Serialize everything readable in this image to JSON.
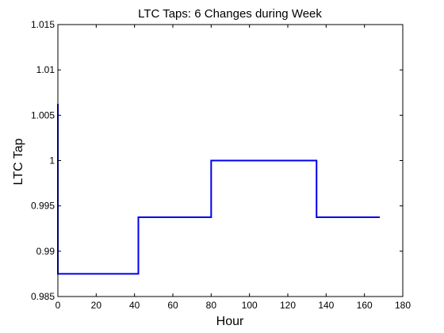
{
  "chart_data": {
    "type": "line",
    "title": "LTC Taps: 6 Changes during Week",
    "xlabel": "Hour",
    "ylabel": "LTC Tap",
    "xlim": [
      0,
      180
    ],
    "ylim": [
      0.985,
      1.015
    ],
    "x_ticks": [
      0,
      20,
      40,
      60,
      80,
      100,
      120,
      140,
      160,
      180
    ],
    "y_ticks": [
      0.985,
      0.99,
      0.995,
      1,
      1.005,
      1.01,
      1.015
    ],
    "x_tick_labels": [
      "0",
      "20",
      "40",
      "60",
      "80",
      "100",
      "120",
      "140",
      "160",
      "180"
    ],
    "y_tick_labels": [
      "0.985",
      "0.99",
      "0.995",
      "1",
      "1.005",
      "1.01",
      "1.015"
    ],
    "grid": false,
    "series": [
      {
        "color": "#0000ee",
        "x": [
          0,
          0,
          0.6,
          0.6,
          42,
          42,
          80,
          80,
          80,
          80,
          135,
          135,
          135,
          135,
          168
        ],
        "y": [
          1.00625,
          0.9875,
          0.9875,
          0.9875,
          0.9875,
          0.99375,
          0.99375,
          0.997,
          0.997,
          1.0,
          1.0,
          0.997,
          0.997,
          0.99375,
          0.99375
        ]
      }
    ]
  }
}
